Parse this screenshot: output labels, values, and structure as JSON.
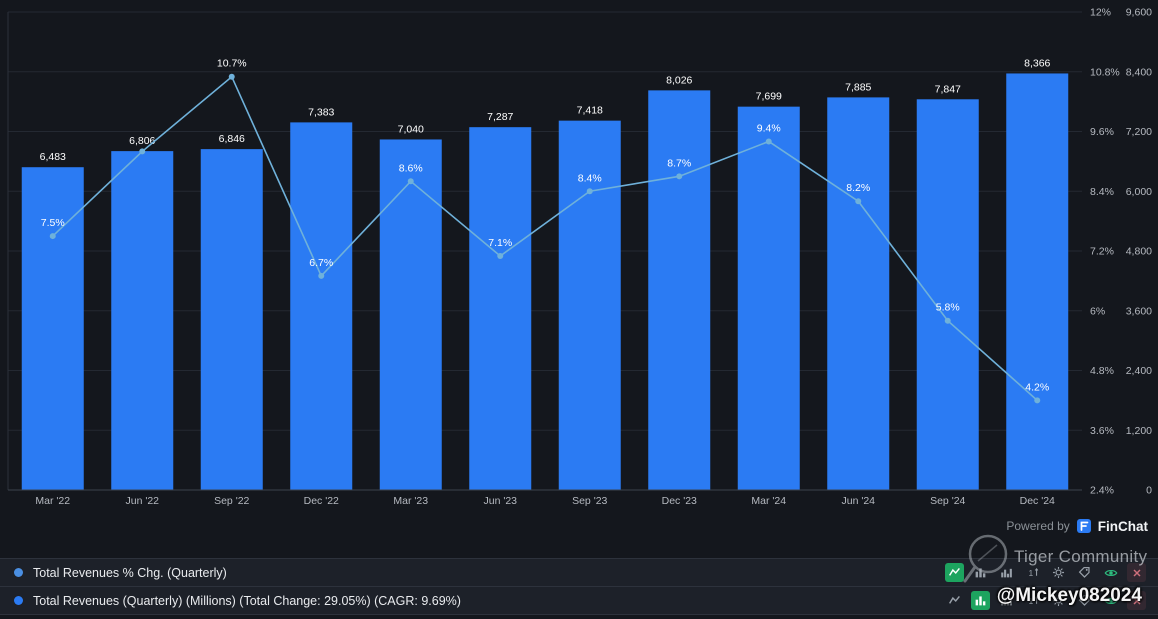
{
  "chart_data": {
    "type": "combo",
    "title": "",
    "categories": [
      "Mar '22",
      "Jun '22",
      "Sep '22",
      "Dec '22",
      "Mar '23",
      "Jun '23",
      "Sep '23",
      "Dec '23",
      "Mar '24",
      "Jun '24",
      "Sep '24",
      "Dec '24"
    ],
    "series": [
      {
        "name": "Total Revenues (Quarterly) (Millions)",
        "type": "bar",
        "color": "#2b7bf3",
        "values": [
          6483,
          6806,
          6846,
          7383,
          7040,
          7287,
          7418,
          8026,
          7699,
          7885,
          7847,
          8366
        ],
        "labels": [
          "6,483",
          "6,806",
          "6,846",
          "7,383",
          "7,040",
          "7,287",
          "7,418",
          "8,026",
          "7,699",
          "7,885",
          "7,847",
          "8,366"
        ]
      },
      {
        "name": "Total Revenues % Chg. (Quarterly)",
        "type": "line",
        "color": "#6fb1da",
        "values": [
          7.5,
          9.2,
          10.7,
          6.7,
          8.6,
          7.1,
          8.4,
          8.7,
          9.4,
          8.2,
          5.8,
          4.2
        ],
        "labels": [
          "7.5%",
          null,
          "10.7%",
          "6.7%",
          "8.6%",
          "7.1%",
          "8.4%",
          "8.7%",
          "9.4%",
          "8.2%",
          "5.8%",
          "4.2%"
        ]
      }
    ],
    "percent_axis": {
      "position": "right-inner",
      "min": 2.4,
      "max": 12,
      "ticks": [
        "12%",
        "10.8%",
        "9.6%",
        "8.4%",
        "7.2%",
        "6%",
        "4.8%",
        "3.6%",
        "2.4%"
      ]
    },
    "value_axis": {
      "position": "right-outer",
      "min": 0,
      "max": 9600,
      "ticks": [
        "9,600",
        "8,400",
        "7,200",
        "6,000",
        "4,800",
        "3,600",
        "2,400",
        "1,200",
        "0"
      ]
    },
    "grid": true,
    "legend_position": "bottom"
  },
  "powered_by": {
    "prefix": "Powered by",
    "brand": "FinChat"
  },
  "legend": {
    "axis_glyph": "1",
    "rows": [
      {
        "label": "Total Revenues % Chg. (Quarterly)",
        "dot_color": "#4a8fe2",
        "active_type": "line",
        "icons": [
          "line-chart-icon",
          "bar-chart-icon",
          "grouped-bar-chart-icon",
          "axis-toggle-icon",
          "gear-icon",
          "tag-icon",
          "eye-icon",
          "close-icon"
        ]
      },
      {
        "label": "Total Revenues (Quarterly) (Millions) (Total Change: 29.05%) (CAGR: 9.69%)",
        "dot_color": "#2b7bf3",
        "active_type": "bar",
        "icons": [
          "line-chart-icon",
          "bar-chart-icon",
          "grouped-bar-chart-icon",
          "axis-toggle-icon",
          "gear-icon",
          "tag-icon",
          "eye-icon",
          "close-icon"
        ]
      }
    ]
  },
  "watermark": {
    "community": "Tiger Community",
    "handle": "@Mickey082024"
  },
  "colors": {
    "background": "#14171d",
    "legend_row_bg": "#1d2129",
    "bar": "#2b7bf3",
    "line": "#6fb1da",
    "grid": "#242932",
    "axis_text": "#b6bac1",
    "data_label": "#ffffff",
    "active_icon_bg": "#1da45f"
  }
}
